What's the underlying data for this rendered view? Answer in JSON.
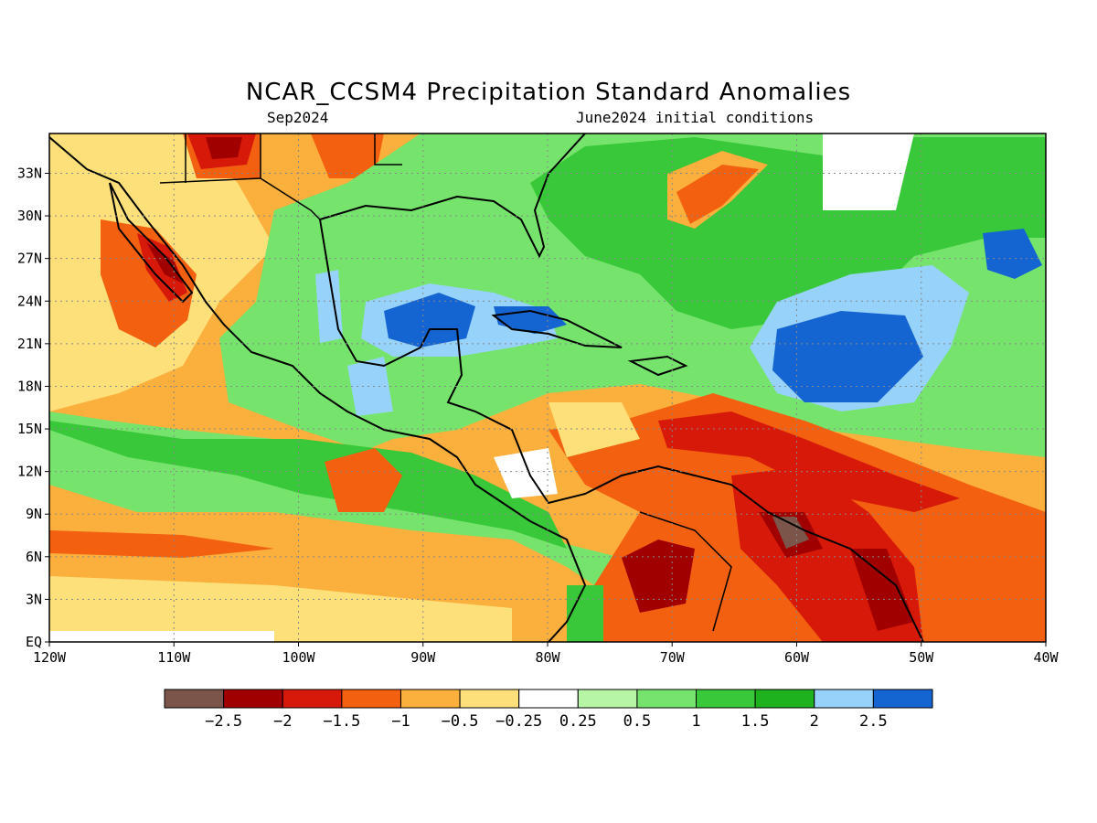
{
  "title": "NCAR_CCSM4 Precipitation Standard Anomalies",
  "subtitle_left": "Sep2024",
  "subtitle_right": "June2024 initial conditions",
  "lat_labels": [
    "33N",
    "30N",
    "27N",
    "24N",
    "21N",
    "18N",
    "15N",
    "12N",
    "9N",
    "6N",
    "3N",
    "EQ"
  ],
  "lat_values": [
    33,
    30,
    27,
    24,
    21,
    18,
    15,
    12,
    9,
    6,
    3,
    0
  ],
  "lon_labels": [
    "120W",
    "110W",
    "100W",
    "90W",
    "80W",
    "70W",
    "60W",
    "50W",
    "40W"
  ],
  "lon_values": [
    -120,
    -110,
    -100,
    -90,
    -80,
    -70,
    -60,
    -50,
    -40
  ],
  "colorbar": {
    "labels": [
      "-2.5",
      "-2",
      "-1.5",
      "-1",
      "-0.5",
      "-0.25",
      "0.25",
      "0.5",
      "1",
      "1.5",
      "2",
      "2.5"
    ],
    "colors": [
      "#7b5549",
      "#a00000",
      "#d7190a",
      "#f26010",
      "#fbaf3c",
      "#fde07a",
      "#ffffff",
      "#b6f5a6",
      "#76e46c",
      "#39c839",
      "#1eb21e",
      "#96d2fa",
      "#1464d2"
    ]
  },
  "colors": {
    "ocean_green": "#76e46c",
    "dry_orange": "#f26010",
    "wet_blue": "#1464d2"
  }
}
